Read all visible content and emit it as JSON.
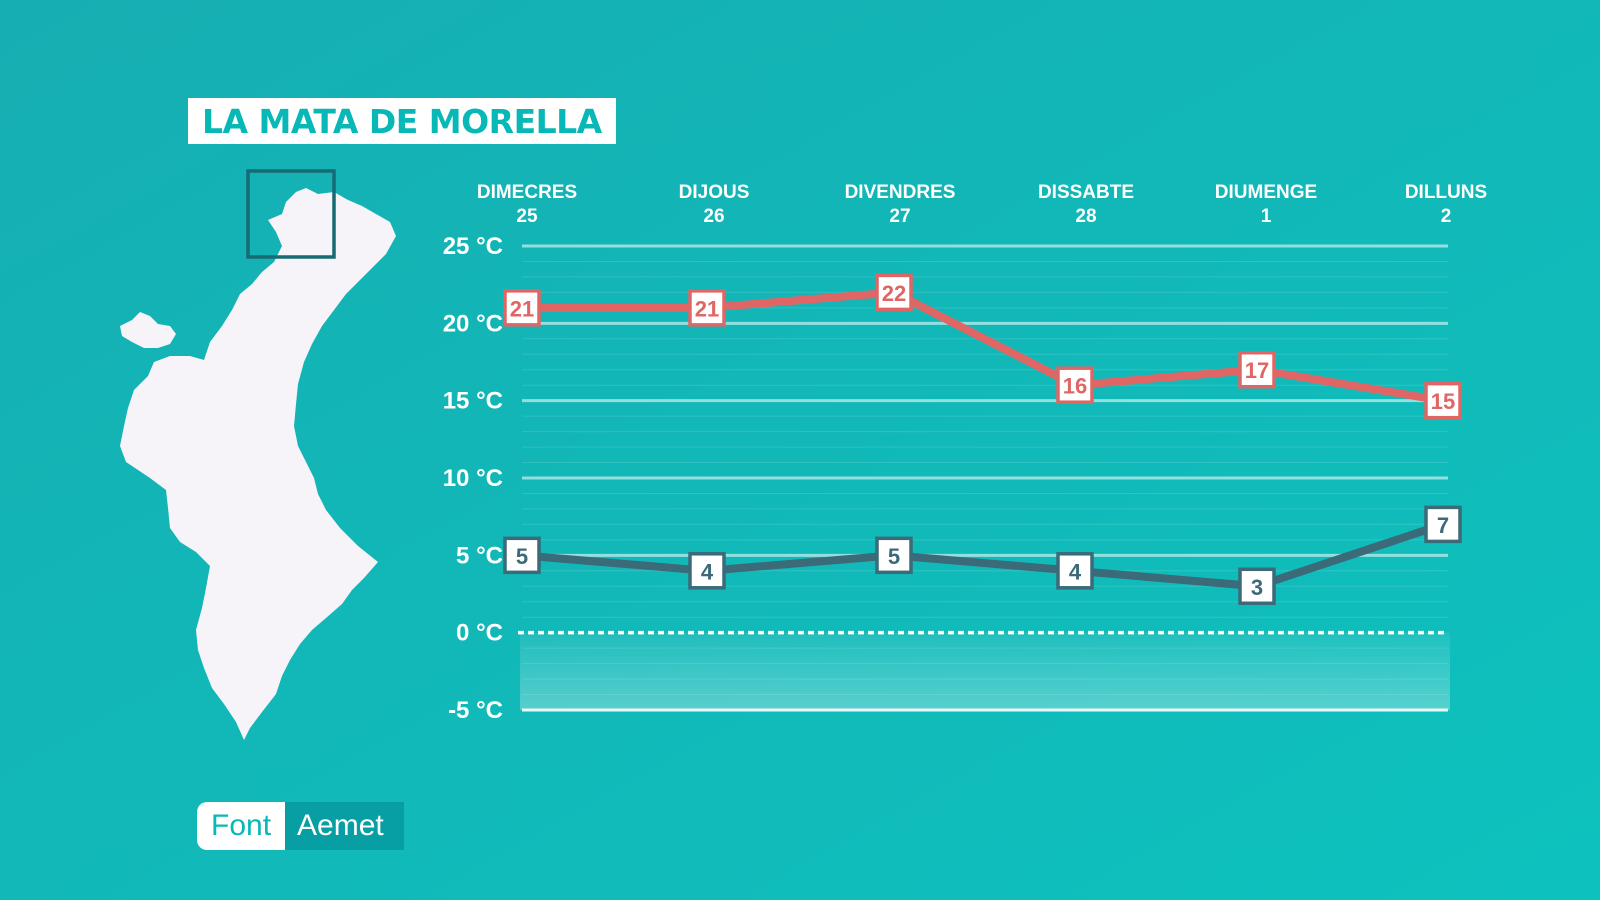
{
  "title": "LA MATA DE MORELLA",
  "source": {
    "label": "Font",
    "value": "Aemet"
  },
  "colors": {
    "background_start": "#16aeb2",
    "background_end": "#0dc2be",
    "high": "#e06665",
    "low": "#3b6a78",
    "title_text": "#08b8b6"
  },
  "map": {
    "icon": "valencian-community-map",
    "highlight": "northern-locator-box"
  },
  "chart_data": {
    "type": "line",
    "categories": [
      {
        "day": "DIMECRES",
        "date": "25"
      },
      {
        "day": "DIJOUS",
        "date": "26"
      },
      {
        "day": "DIVENDRES",
        "date": "27"
      },
      {
        "day": "DISSABTE",
        "date": "28"
      },
      {
        "day": "DIUMENGE",
        "date": "1"
      },
      {
        "day": "DILLUNS",
        "date": "2"
      }
    ],
    "series": [
      {
        "role": "max",
        "color": "#e06665",
        "values": [
          21,
          21,
          22,
          16,
          17,
          15
        ]
      },
      {
        "role": "min",
        "color": "#3b6a78",
        "values": [
          5,
          4,
          5,
          4,
          3,
          7
        ]
      }
    ],
    "ylim": [
      -5,
      25
    ],
    "yticks": [
      25,
      20,
      15,
      10,
      5,
      0,
      -5
    ],
    "ytick_labels": [
      "25 °C",
      "20 °C",
      "15 °C",
      "10 °C",
      "5 °C",
      "0 °C",
      "-5 °C"
    ],
    "zero_line": "dashed",
    "grid": true
  }
}
